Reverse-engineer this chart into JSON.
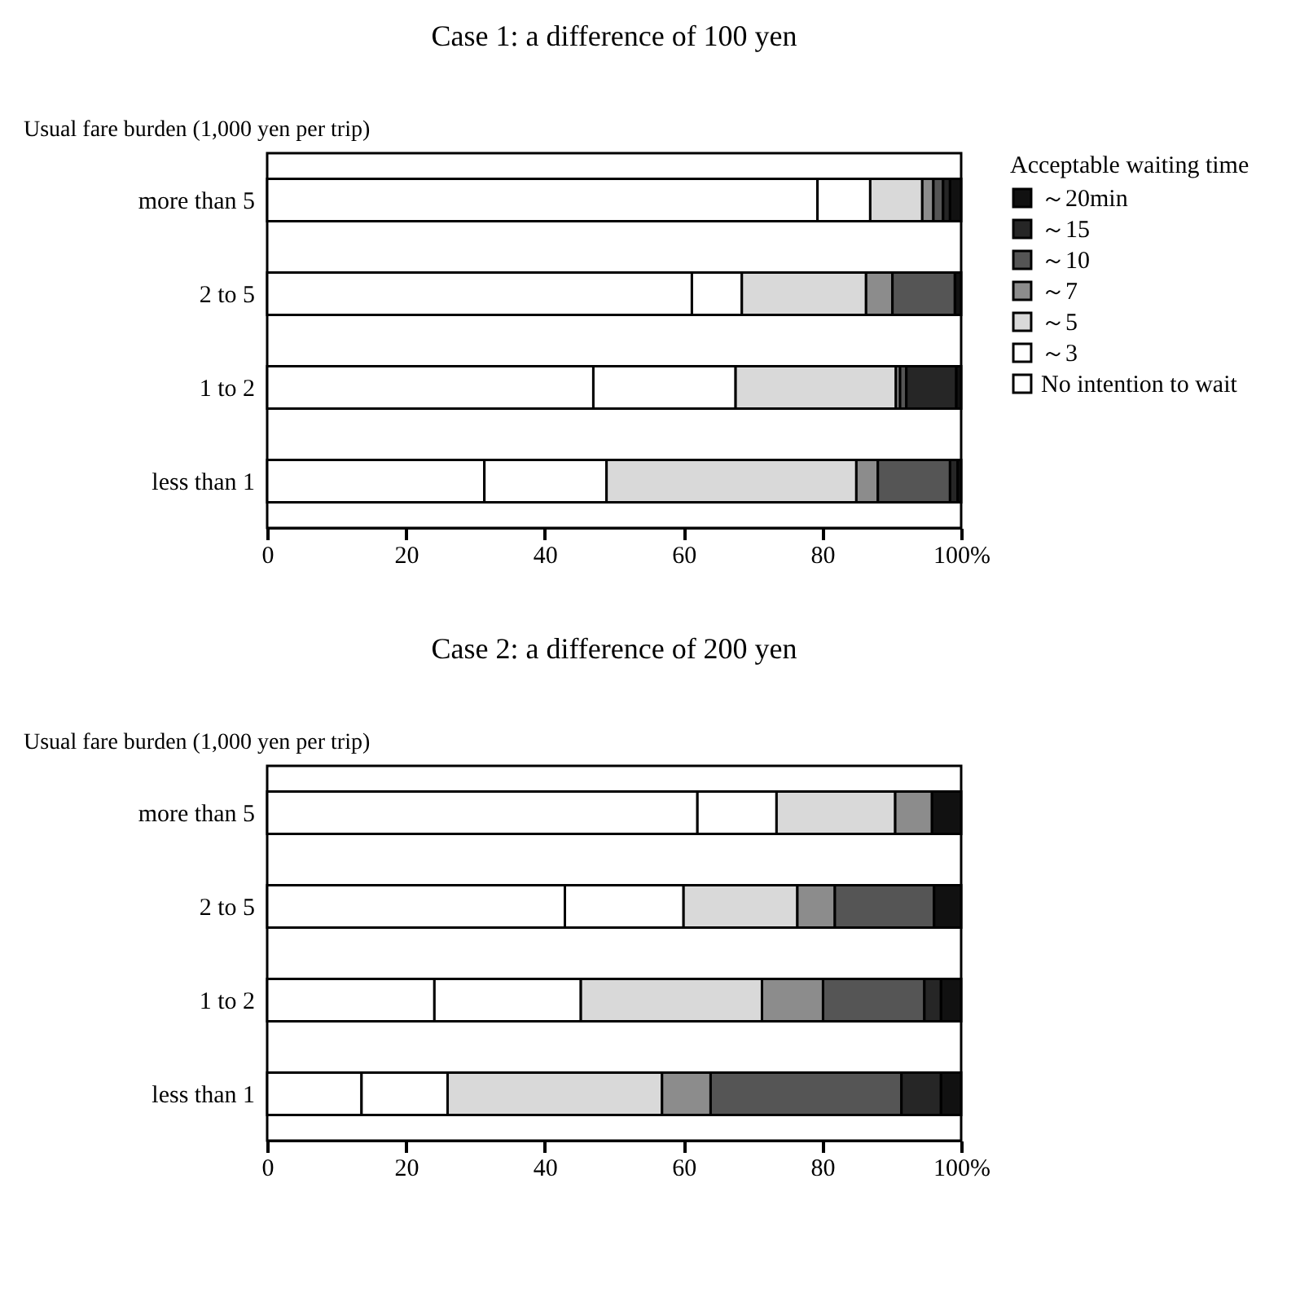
{
  "chart_data": [
    {
      "type": "bar",
      "orientation": "horizontal",
      "stacked": true,
      "title": "Case 1: a difference of 100 yen",
      "ylabel": "Usual fare burden (1,000 yen per trip)",
      "legend_title": "Acceptable waiting time",
      "legend": "right",
      "categories": [
        "more than 5",
        "2  to  5",
        "1  to  2",
        "less than  1"
      ],
      "xlim": [
        0,
        100
      ],
      "xticks": [
        0,
        20,
        40,
        60,
        80,
        {
          "value": 100,
          "label": "100%"
        }
      ],
      "series": [
        {
          "name": "No intention to wait",
          "color": "#ffffff",
          "values": [
            79.3,
            61.2,
            47,
            31.3
          ]
        },
        {
          "name": "～3",
          "color": "#ffffff",
          "values": [
            7.6,
            7.2,
            20.5,
            17.6
          ]
        },
        {
          "name": "～5",
          "color": "#d9d9d9",
          "values": [
            7.5,
            17.9,
            23.1,
            36
          ]
        },
        {
          "name": "～7",
          "color": "#8c8c8c",
          "values": [
            1.6,
            3.8,
            0.6,
            3.1
          ]
        },
        {
          "name": "～10",
          "color": "#555555",
          "values": [
            1.4,
            9,
            0.9,
            10.4
          ]
        },
        {
          "name": "～15",
          "color": "#262626",
          "values": [
            1,
            null,
            7.2,
            1.1
          ]
        },
        {
          "name": "～20min",
          "color": "#111111",
          "values": [
            1.6,
            0.9,
            0.7,
            0.5
          ]
        }
      ]
    },
    {
      "type": "bar",
      "orientation": "horizontal",
      "stacked": true,
      "title": "Case 2: a difference of 200 yen",
      "ylabel": "Usual fare burden (1,000 yen per trip)",
      "categories": [
        "more than 5",
        "2  to  5",
        "1  to  2",
        "less than  1"
      ],
      "xlim": [
        0,
        100
      ],
      "xticks": [
        0,
        20,
        40,
        60,
        80,
        {
          "value": 100,
          "label": "100%"
        }
      ],
      "series": [
        {
          "color": "#ffffff",
          "values": [
            62,
            42.9,
            24.1,
            13.6
          ]
        },
        {
          "color": "#ffffff",
          "values": [
            11.4,
            17.1,
            21.1,
            12.4
          ]
        },
        {
          "color": "#d9d9d9",
          "values": [
            17.1,
            16.4,
            26.1,
            30.9
          ]
        },
        {
          "color": "#8c8c8c",
          "values": [
            5.3,
            5.4,
            8.8,
            7
          ]
        },
        {
          "color": "#555555",
          "values": [
            null,
            14.3,
            14.6,
            27.5
          ]
        },
        {
          "color": "#262626",
          "values": [
            null,
            null,
            2.4,
            5.7
          ]
        },
        {
          "color": "#111111",
          "values": [
            4.2,
            3.9,
            2.9,
            2.9
          ]
        }
      ]
    }
  ]
}
